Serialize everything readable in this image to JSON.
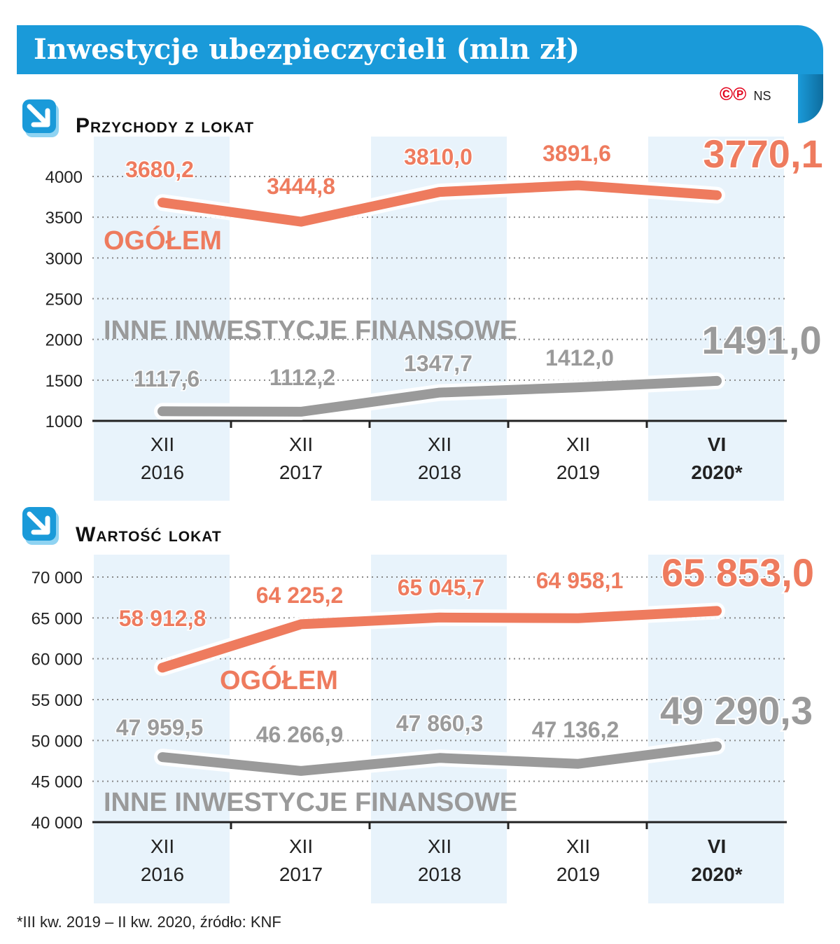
{
  "header": {
    "title": "Inwestycje ubezpieczycieli (mln zł)",
    "copyright_symbols": "©℗",
    "credit": "NS"
  },
  "colors": {
    "banner": "#1a9ad9",
    "total_series": "#ee7b5e",
    "other_series": "#9a9a9a",
    "stripe": "#e8f3fb"
  },
  "chart_data": [
    {
      "type": "line",
      "title": "Przychody z lokat",
      "categories": [
        [
          "XII",
          "2016"
        ],
        [
          "XII",
          "2017"
        ],
        [
          "XII",
          "2018"
        ],
        [
          "XII",
          "2019"
        ],
        [
          "VI",
          "2020*"
        ]
      ],
      "yticks": [
        "4000",
        "3500",
        "3000",
        "2500",
        "2000",
        "1500",
        "1000"
      ],
      "ylim": [
        1000,
        4000
      ],
      "grid": true,
      "series": [
        {
          "name": "OGÓŁEM",
          "values": [
            3680.2,
            3444.8,
            3810.0,
            3891.6,
            3770.1
          ],
          "labels": [
            "3680,2",
            "3444,8",
            "3810,0",
            "3891,6",
            "3770,1"
          ]
        },
        {
          "name": "INNE INWESTYCJE FINANSOWE",
          "values": [
            1117.6,
            1112.2,
            1347.7,
            1412.0,
            1491.0
          ],
          "labels": [
            "1117,6",
            "1112,2",
            "1347,7",
            "1412,0",
            "1491,0"
          ]
        }
      ]
    },
    {
      "type": "line",
      "title": "Wartość lokat",
      "categories": [
        [
          "XII",
          "2016"
        ],
        [
          "XII",
          "2017"
        ],
        [
          "XII",
          "2018"
        ],
        [
          "XII",
          "2019"
        ],
        [
          "VI",
          "2020*"
        ]
      ],
      "yticks": [
        "70 000",
        "65 000",
        "60 000",
        "55 000",
        "50 000",
        "45 000",
        "40 000"
      ],
      "ylim": [
        40000,
        70000
      ],
      "grid": true,
      "series": [
        {
          "name": "OGÓŁEM",
          "values": [
            58912.8,
            64225.2,
            65045.7,
            64958.1,
            65853.0
          ],
          "labels": [
            "58 912,8",
            "64 225,2",
            "65 045,7",
            "64 958,1",
            "65 853,0"
          ]
        },
        {
          "name": "INNE INWESTYCJE FINANSOWE",
          "values": [
            47959.5,
            46266.9,
            47860.3,
            47136.2,
            49290.3
          ],
          "labels": [
            "47 959,5",
            "46 266,9",
            "47 860,3",
            "47 136,2",
            "49 290,3"
          ]
        }
      ]
    }
  ],
  "footnote": "*III kw. 2019 – II kw. 2020, źródło: KNF"
}
